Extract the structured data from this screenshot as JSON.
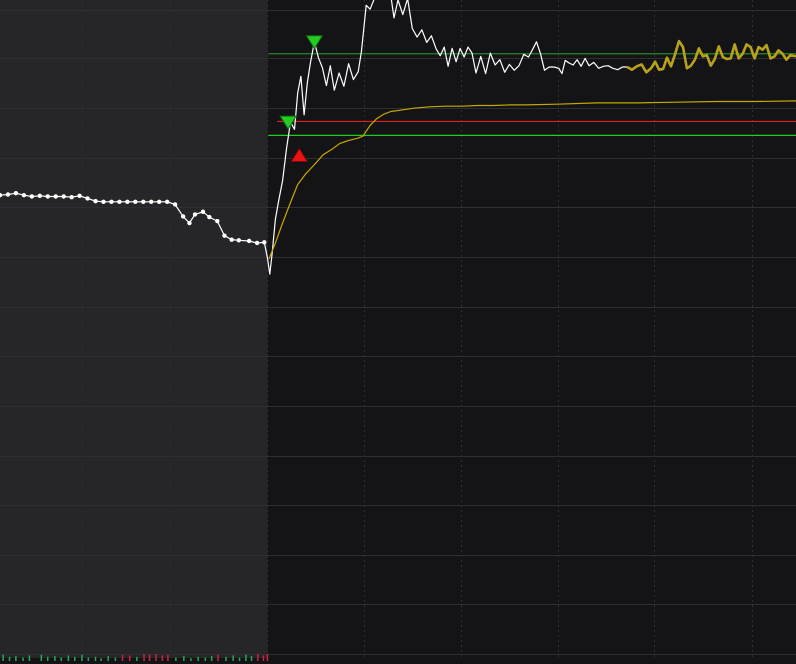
{
  "chart_data": {
    "type": "line",
    "title": "",
    "xlabel": "",
    "ylabel": "",
    "grid": true,
    "xlim": [
      0,
      100
    ],
    "ylim": [
      0,
      100
    ],
    "premarket_end_x": 33.6,
    "colors": {
      "background": "#141416",
      "premarket_background": "#262628",
      "grid": "#2e2e34",
      "price": "#ffffff",
      "vwap": "#c8a800",
      "highlight": "#b9a21a",
      "level_green": "#22cc22",
      "level_green_dark": "#1f8a2a",
      "level_red": "#dd2222",
      "marker_sell": "#22cc22",
      "marker_buy": "#ee1111",
      "volume_up": "#22aa55",
      "volume_down": "#cc2244"
    },
    "horizontal_levels": [
      {
        "y": 89.8,
        "color_key": "level_green_dark",
        "x_start": 33.7
      },
      {
        "y": 79.6,
        "color_key": "level_red",
        "x_start": 34.8
      },
      {
        "y": 77.5,
        "color_key": "level_green",
        "x_start": 33.7
      }
    ],
    "series": [
      {
        "key": "price",
        "values": [
          [
            0,
            68.5
          ],
          [
            1,
            68.6
          ],
          [
            2,
            68.8
          ],
          [
            3,
            68.5
          ],
          [
            4,
            68.3
          ],
          [
            5,
            68.4
          ],
          [
            6,
            68.3
          ],
          [
            7,
            68.3
          ],
          [
            8,
            68.3
          ],
          [
            9,
            68.2
          ],
          [
            10,
            68.4
          ],
          [
            11,
            68.0
          ],
          [
            12,
            67.6
          ],
          [
            13,
            67.5
          ],
          [
            14,
            67.5
          ],
          [
            15,
            67.5
          ],
          [
            16,
            67.5
          ],
          [
            17,
            67.5
          ],
          [
            18,
            67.5
          ],
          [
            19,
            67.5
          ],
          [
            20,
            67.5
          ],
          [
            21,
            67.5
          ],
          [
            22,
            67.1
          ],
          [
            23,
            65.3
          ],
          [
            23.8,
            64.3
          ],
          [
            24.5,
            65.6
          ],
          [
            25.5,
            66.0
          ],
          [
            26.3,
            65.2
          ],
          [
            27.3,
            64.6
          ],
          [
            28.2,
            62.4
          ],
          [
            29.1,
            61.8
          ],
          [
            30,
            61.7
          ],
          [
            31.3,
            61.6
          ],
          [
            32.3,
            61.3
          ],
          [
            33.2,
            61.4
          ],
          [
            33.6,
            59.0
          ],
          [
            33.9,
            56.6
          ],
          [
            34.2,
            59.8
          ],
          [
            34.6,
            64.9
          ],
          [
            35.0,
            67.6
          ],
          [
            35.5,
            70.7
          ],
          [
            36.0,
            75.6
          ],
          [
            36.5,
            79.5
          ],
          [
            37.0,
            78.4
          ],
          [
            37.4,
            83.9
          ],
          [
            37.8,
            86.4
          ],
          [
            38.2,
            80.6
          ],
          [
            38.6,
            85.4
          ],
          [
            39.0,
            88.4
          ],
          [
            39.5,
            91.6
          ],
          [
            40.0,
            89.2
          ],
          [
            40.5,
            87.7
          ],
          [
            41.0,
            85.0
          ],
          [
            41.5,
            88.0
          ],
          [
            42.0,
            84.3
          ],
          [
            42.6,
            86.9
          ],
          [
            43.2,
            84.9
          ],
          [
            43.8,
            88.3
          ],
          [
            44.4,
            85.9
          ],
          [
            45.0,
            87.1
          ],
          [
            45.4,
            90.1
          ],
          [
            46.0,
            97.1
          ],
          [
            46.5,
            96.5
          ],
          [
            47.0,
            98.0
          ],
          [
            47.5,
            100.0
          ],
          [
            48.0,
            99.5
          ],
          [
            48.5,
            98.5
          ],
          [
            49.0,
            99.4
          ],
          [
            49.5,
            95.2
          ],
          [
            50.0,
            97.9
          ],
          [
            50.6,
            95.7
          ],
          [
            51.2,
            98.1
          ],
          [
            51.8,
            93.6
          ],
          [
            52.4,
            92.3
          ],
          [
            53.0,
            93.4
          ],
          [
            53.6,
            91.5
          ],
          [
            54.2,
            92.5
          ],
          [
            54.8,
            90.5
          ],
          [
            55.3,
            89.5
          ],
          [
            55.8,
            90.8
          ],
          [
            56.3,
            87.9
          ],
          [
            56.8,
            90.6
          ],
          [
            57.3,
            88.6
          ],
          [
            57.8,
            90.6
          ],
          [
            58.3,
            89.3
          ],
          [
            58.8,
            90.8
          ],
          [
            59.3,
            89.9
          ],
          [
            59.8,
            86.9
          ],
          [
            60.4,
            89.4
          ],
          [
            61.0,
            86.8
          ],
          [
            61.6,
            89.9
          ],
          [
            62.2,
            88.1
          ],
          [
            62.8,
            88.9
          ],
          [
            63.4,
            87.0
          ],
          [
            64.0,
            88.2
          ],
          [
            64.6,
            87.3
          ],
          [
            65.2,
            88.0
          ],
          [
            65.8,
            89.7
          ],
          [
            66.4,
            89.3
          ],
          [
            66.9,
            90.4
          ],
          [
            67.4,
            91.6
          ],
          [
            67.9,
            89.8
          ],
          [
            68.4,
            87.3
          ],
          [
            69.0,
            87.8
          ],
          [
            69.6,
            87.8
          ],
          [
            70.2,
            87.6
          ],
          [
            70.6,
            86.8
          ],
          [
            71.0,
            88.8
          ],
          [
            71.5,
            88.4
          ],
          [
            72.0,
            88.1
          ],
          [
            72.5,
            88.9
          ],
          [
            73.0,
            87.9
          ],
          [
            73.5,
            89.1
          ],
          [
            74.0,
            88.0
          ],
          [
            74.6,
            88.5
          ],
          [
            75.2,
            87.6
          ],
          [
            75.8,
            87.9
          ],
          [
            76.4,
            88.0
          ],
          [
            77.0,
            87.6
          ],
          [
            77.6,
            87.4
          ],
          [
            78.2,
            87.8
          ],
          [
            78.8,
            87.8
          ]
        ]
      },
      {
        "key": "highlight",
        "values": [
          [
            78.8,
            87.8
          ],
          [
            79.4,
            87.4
          ],
          [
            80.0,
            87.9
          ],
          [
            80.6,
            88.2
          ],
          [
            81.2,
            87.0
          ],
          [
            81.8,
            87.6
          ],
          [
            82.3,
            88.6
          ],
          [
            82.8,
            87.4
          ],
          [
            83.3,
            87.5
          ],
          [
            83.8,
            89.2
          ],
          [
            84.3,
            87.9
          ],
          [
            84.8,
            89.7
          ],
          [
            85.3,
            91.7
          ],
          [
            85.8,
            90.8
          ],
          [
            86.3,
            87.6
          ],
          [
            86.8,
            88.0
          ],
          [
            87.3,
            88.9
          ],
          [
            87.8,
            90.6
          ],
          [
            88.3,
            89.4
          ],
          [
            88.8,
            89.6
          ],
          [
            89.3,
            88.0
          ],
          [
            89.8,
            89.0
          ],
          [
            90.3,
            90.9
          ],
          [
            90.8,
            89.3
          ],
          [
            91.3,
            89.0
          ],
          [
            91.8,
            89.1
          ],
          [
            92.3,
            91.2
          ],
          [
            92.8,
            89.1
          ],
          [
            93.3,
            89.8
          ],
          [
            93.8,
            91.2
          ],
          [
            94.3,
            90.8
          ],
          [
            94.8,
            89.1
          ],
          [
            95.3,
            90.8
          ],
          [
            95.8,
            90.4
          ],
          [
            96.3,
            91.1
          ],
          [
            96.8,
            89.1
          ],
          [
            97.3,
            89.4
          ],
          [
            97.8,
            90.3
          ],
          [
            98.3,
            89.8
          ],
          [
            98.8,
            88.9
          ],
          [
            99.3,
            89.6
          ],
          [
            100,
            89.4
          ]
        ]
      },
      {
        "key": "vwap",
        "values": [
          [
            33.8,
            58.9
          ],
          [
            34.6,
            61.3
          ],
          [
            35.5,
            64.3
          ],
          [
            36.4,
            67.1
          ],
          [
            37.4,
            70.1
          ],
          [
            38.4,
            71.7
          ],
          [
            39.5,
            73.1
          ],
          [
            40.6,
            74.6
          ],
          [
            41.7,
            75.4
          ],
          [
            42.7,
            76.3
          ],
          [
            43.7,
            76.7
          ],
          [
            45.0,
            77.1
          ],
          [
            45.6,
            77.4
          ],
          [
            46.5,
            79.0
          ],
          [
            47.3,
            80.0
          ],
          [
            48.2,
            80.7
          ],
          [
            49.1,
            81.1
          ],
          [
            50.3,
            81.3
          ],
          [
            52.0,
            81.6
          ],
          [
            54.0,
            81.8
          ],
          [
            56.0,
            81.9
          ],
          [
            58.0,
            81.9
          ],
          [
            60.0,
            82.0
          ],
          [
            62.0,
            82.0
          ],
          [
            64.0,
            82.1
          ],
          [
            66.0,
            82.1
          ],
          [
            70.0,
            82.2
          ],
          [
            75.0,
            82.4
          ],
          [
            80.0,
            82.4
          ],
          [
            85.0,
            82.5
          ],
          [
            90.0,
            82.6
          ],
          [
            95.0,
            82.6
          ],
          [
            100,
            82.7
          ]
        ]
      }
    ],
    "markers": [
      {
        "type": "sell",
        "x": 36.2,
        "y": 79.2
      },
      {
        "type": "sell",
        "x": 39.5,
        "y": 91.3
      },
      {
        "type": "buy",
        "x": 37.6,
        "y": 74.3
      }
    ],
    "volume": [
      {
        "x": 0.3,
        "v": 0.9,
        "up": true
      },
      {
        "x": 1.1,
        "v": 0.6,
        "up": true
      },
      {
        "x": 1.9,
        "v": 0.7,
        "up": true
      },
      {
        "x": 2.8,
        "v": 0.5,
        "up": true
      },
      {
        "x": 3.6,
        "v": 0.8,
        "up": true
      },
      {
        "x": 5.1,
        "v": 0.9,
        "up": true
      },
      {
        "x": 5.9,
        "v": 0.6,
        "up": true
      },
      {
        "x": 6.8,
        "v": 0.7,
        "up": true
      },
      {
        "x": 7.6,
        "v": 0.5,
        "up": true
      },
      {
        "x": 8.5,
        "v": 0.8,
        "up": true
      },
      {
        "x": 9.3,
        "v": 0.6,
        "up": true
      },
      {
        "x": 10.2,
        "v": 0.9,
        "up": true
      },
      {
        "x": 11.0,
        "v": 0.5,
        "up": true
      },
      {
        "x": 11.9,
        "v": 0.6,
        "up": true
      },
      {
        "x": 12.6,
        "v": 0.4,
        "up": true
      },
      {
        "x": 13.5,
        "v": 0.7,
        "up": true
      },
      {
        "x": 14.4,
        "v": 0.5,
        "up": true
      },
      {
        "x": 15.3,
        "v": 0.9,
        "up": false
      },
      {
        "x": 16.2,
        "v": 0.8,
        "up": false
      },
      {
        "x": 17.1,
        "v": 0.6,
        "up": true
      },
      {
        "x": 18.0,
        "v": 1.0,
        "up": false
      },
      {
        "x": 18.7,
        "v": 0.9,
        "up": false
      },
      {
        "x": 19.5,
        "v": 1.0,
        "up": false
      },
      {
        "x": 20.3,
        "v": 0.8,
        "up": false
      },
      {
        "x": 21.0,
        "v": 0.9,
        "up": false
      },
      {
        "x": 22.0,
        "v": 0.5,
        "up": true
      },
      {
        "x": 23.0,
        "v": 0.7,
        "up": true
      },
      {
        "x": 23.9,
        "v": 0.4,
        "up": true
      },
      {
        "x": 24.8,
        "v": 0.6,
        "up": true
      },
      {
        "x": 25.7,
        "v": 0.5,
        "up": true
      },
      {
        "x": 26.5,
        "v": 0.7,
        "up": true
      },
      {
        "x": 27.3,
        "v": 0.9,
        "up": false
      },
      {
        "x": 28.3,
        "v": 0.6,
        "up": true
      },
      {
        "x": 29.2,
        "v": 0.8,
        "up": true
      },
      {
        "x": 30.0,
        "v": 0.5,
        "up": true
      },
      {
        "x": 30.8,
        "v": 0.9,
        "up": true
      },
      {
        "x": 31.5,
        "v": 0.7,
        "up": true
      },
      {
        "x": 32.3,
        "v": 1.0,
        "up": false
      },
      {
        "x": 33.0,
        "v": 0.8,
        "up": false
      },
      {
        "x": 33.5,
        "v": 1.0,
        "up": false
      }
    ]
  }
}
